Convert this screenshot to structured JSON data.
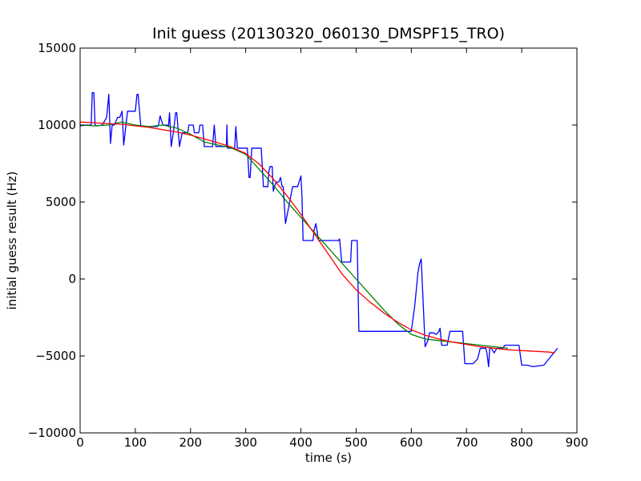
{
  "chart_data": {
    "type": "line",
    "title": "Init guess (20130320_060130_DMSPF15_TRO)",
    "xlabel": "time (s)",
    "ylabel": "initial guess result (Hz)",
    "xlim": [
      0,
      900
    ],
    "ylim": [
      -10000,
      15000
    ],
    "xticks": [
      0,
      100,
      200,
      300,
      400,
      500,
      600,
      700,
      800,
      900
    ],
    "yticks": [
      -10000,
      -5000,
      0,
      5000,
      10000,
      15000
    ],
    "xtick_labels": [
      "0",
      "100",
      "200",
      "300",
      "400",
      "500",
      "600",
      "700",
      "800",
      "900"
    ],
    "ytick_labels": [
      "−10000",
      "−5000",
      "0",
      "5000",
      "10000",
      "15000"
    ],
    "grid": false,
    "legend": "none",
    "series": [
      {
        "color": "#0000ff",
        "x": [
          0,
          10,
          20,
          22,
          25,
          27,
          30,
          40,
          48,
          52,
          55,
          58,
          62,
          68,
          72,
          76,
          79,
          83,
          86,
          90,
          95,
          100,
          103,
          105,
          110,
          125,
          135,
          140,
          142,
          145,
          150,
          158,
          160,
          162,
          165,
          170,
          173,
          175,
          180,
          185,
          190,
          195,
          197,
          200,
          203,
          205,
          207,
          210,
          212,
          215,
          217,
          222,
          225,
          240,
          243,
          246,
          250,
          255,
          260,
          265,
          266,
          267,
          270,
          280,
          282,
          285,
          290,
          300,
          303,
          306,
          308,
          311,
          314,
          318,
          328,
          330,
          332,
          340,
          342,
          344,
          346,
          348,
          350,
          353,
          355,
          360,
          363,
          366,
          368,
          372,
          385,
          387,
          389,
          394,
          400,
          402,
          404,
          420,
          422,
          424,
          427,
          429,
          432,
          440,
          450,
          463,
          468,
          470,
          474,
          490,
          492,
          495,
          498,
          500,
          502,
          505,
          540,
          574,
          590,
          600,
          606,
          612,
          615,
          618,
          625,
          630,
          633,
          638,
          640,
          645,
          648,
          650,
          652,
          655,
          660,
          663,
          665,
          670,
          680,
          690,
          693,
          697,
          700,
          712,
          720,
          725,
          728,
          735,
          737,
          740,
          742,
          745,
          750,
          755,
          758,
          760,
          763,
          765,
          770,
          775,
          780,
          785,
          790,
          795,
          800,
          810,
          820,
          840,
          865
        ],
        "y": [
          9950,
          10000,
          10000,
          12100,
          12100,
          10000,
          9950,
          10000,
          10500,
          12000,
          8800,
          10000,
          10000,
          10500,
          10500,
          10900,
          8700,
          10000,
          10900,
          10900,
          10900,
          10900,
          12000,
          12000,
          9900,
          9900,
          9900,
          9900,
          10000,
          10600,
          10000,
          10000,
          9900,
          10800,
          8600,
          9800,
          10800,
          10800,
          8600,
          9500,
          9500,
          9500,
          10000,
          10000,
          10000,
          10000,
          9500,
          9500,
          9500,
          9500,
          10000,
          10000,
          8600,
          8600,
          10000,
          8600,
          8600,
          8600,
          8600,
          8600,
          10000,
          8500,
          8500,
          8500,
          9900,
          8500,
          8500,
          8500,
          8500,
          6600,
          6600,
          8500,
          8500,
          8500,
          8500,
          7400,
          6000,
          6000,
          7000,
          7300,
          7300,
          7300,
          5700,
          6100,
          6300,
          6300,
          6600,
          6000,
          6000,
          3600,
          6000,
          6000,
          6000,
          6000,
          6700,
          5300,
          2500,
          2500,
          2500,
          3200,
          3600,
          3200,
          2500,
          2500,
          2500,
          2500,
          2500,
          2600,
          1100,
          1100,
          2500,
          2500,
          2500,
          2500,
          2500,
          -3400,
          -3400,
          -3400,
          -3400,
          -3400,
          -1800,
          400,
          1000,
          1300,
          -4400,
          -4000,
          -3500,
          -3500,
          -3500,
          -3600,
          -3500,
          -3400,
          -3200,
          -4300,
          -4300,
          -4300,
          -4300,
          -3400,
          -3400,
          -3400,
          -3400,
          -5500,
          -5500,
          -5500,
          -5200,
          -4500,
          -4500,
          -4500,
          -4800,
          -5700,
          -4500,
          -4500,
          -4800,
          -4500,
          -4500,
          -4500,
          -4500,
          -4500,
          -4300,
          -4300,
          -4300,
          -4300,
          -4300,
          -4300,
          -5600,
          -5600,
          -5700,
          -5600,
          -4500
        ]
      },
      {
        "color": "#008000",
        "x": [
          0,
          25,
          50,
          75,
          100,
          125,
          150,
          175,
          200,
          225,
          250,
          275,
          300,
          325,
          350,
          375,
          400,
          425,
          450,
          475,
          500,
          525,
          550,
          575,
          600,
          625,
          650,
          675,
          700,
          725,
          750,
          775
        ],
        "y": [
          10000,
          9950,
          10000,
          10200,
          10000,
          9900,
          10000,
          9800,
          9400,
          8900,
          8700,
          8500,
          8100,
          7100,
          6100,
          5000,
          4000,
          3000,
          2000,
          1000,
          0,
          -1000,
          -2000,
          -2900,
          -3600,
          -3900,
          -4000,
          -4100,
          -4200,
          -4300,
          -4400,
          -4500
        ]
      },
      {
        "color": "#ff0000",
        "x": [
          0,
          25,
          50,
          75,
          100,
          125,
          150,
          175,
          200,
          225,
          250,
          275,
          300,
          325,
          350,
          375,
          400,
          425,
          450,
          475,
          500,
          525,
          550,
          575,
          600,
          625,
          650,
          675,
          700,
          725,
          750,
          775,
          800,
          825,
          850,
          860
        ],
        "y": [
          10200,
          10150,
          10100,
          10050,
          9950,
          9850,
          9700,
          9550,
          9350,
          9100,
          8850,
          8550,
          8150,
          7450,
          6500,
          5400,
          4200,
          2900,
          1600,
          300,
          -700,
          -1500,
          -2200,
          -2800,
          -3300,
          -3650,
          -3900,
          -4100,
          -4250,
          -4400,
          -4500,
          -4600,
          -4650,
          -4700,
          -4750,
          -4800
        ]
      }
    ]
  }
}
